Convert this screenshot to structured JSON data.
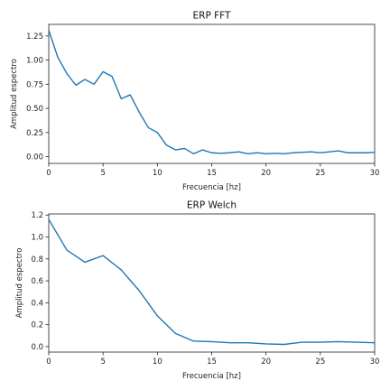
{
  "colors": {
    "series": "#1f77b4"
  },
  "chart_data": [
    {
      "type": "line",
      "title": "ERP FFT",
      "xlabel": "Frecuencia [hz]",
      "ylabel": "Amplitud espectro",
      "xlim": [
        0,
        30
      ],
      "ylim": [
        -0.07,
        1.37
      ],
      "xticks": [
        "0",
        "5",
        "10",
        "15",
        "20",
        "25",
        "30"
      ],
      "yticks": [
        "0.00",
        "0.25",
        "0.50",
        "0.75",
        "1.00",
        "1.25"
      ],
      "grid": false,
      "series": [
        {
          "x": [
            0,
            0.83,
            1.67,
            2.5,
            3.33,
            4.17,
            5,
            5.83,
            6.67,
            7.5,
            8.33,
            9.17,
            10,
            10.83,
            11.67,
            12.5,
            13.33,
            14.17,
            15,
            15.83,
            16.67,
            17.5,
            18.33,
            19.17,
            20,
            20.83,
            21.67,
            22.5,
            23.33,
            24.17,
            25,
            25.83,
            26.67,
            27.5,
            28.33,
            29.17,
            30
          ],
          "y": [
            1.31,
            1.03,
            0.86,
            0.74,
            0.8,
            0.75,
            0.88,
            0.83,
            0.6,
            0.64,
            0.46,
            0.3,
            0.25,
            0.12,
            0.07,
            0.085,
            0.03,
            0.07,
            0.04,
            0.035,
            0.04,
            0.05,
            0.03,
            0.04,
            0.03,
            0.035,
            0.03,
            0.04,
            0.045,
            0.05,
            0.04,
            0.05,
            0.06,
            0.04,
            0.04,
            0.04,
            0.045
          ]
        }
      ]
    },
    {
      "type": "line",
      "title": "ERP Welch",
      "xlabel": "Frecuencia [hz]",
      "ylabel": "Amplitud espectro",
      "xlim": [
        0,
        30
      ],
      "ylim": [
        -0.05,
        1.21
      ],
      "xticks": [
        "0",
        "5",
        "10",
        "15",
        "20",
        "25",
        "30"
      ],
      "yticks": [
        "0.0",
        "0.2",
        "0.4",
        "0.6",
        "0.8",
        "1.0",
        "1.2"
      ],
      "grid": false,
      "series": [
        {
          "x": [
            0,
            1.67,
            3.33,
            5,
            6.67,
            8.33,
            10,
            11.67,
            13.33,
            15,
            16.67,
            18.33,
            20,
            21.67,
            23.33,
            25,
            26.67,
            28.33,
            30
          ],
          "y": [
            1.16,
            0.88,
            0.77,
            0.83,
            0.7,
            0.51,
            0.28,
            0.12,
            0.05,
            0.045,
            0.035,
            0.035,
            0.025,
            0.02,
            0.04,
            0.04,
            0.045,
            0.04,
            0.035
          ]
        }
      ]
    }
  ]
}
